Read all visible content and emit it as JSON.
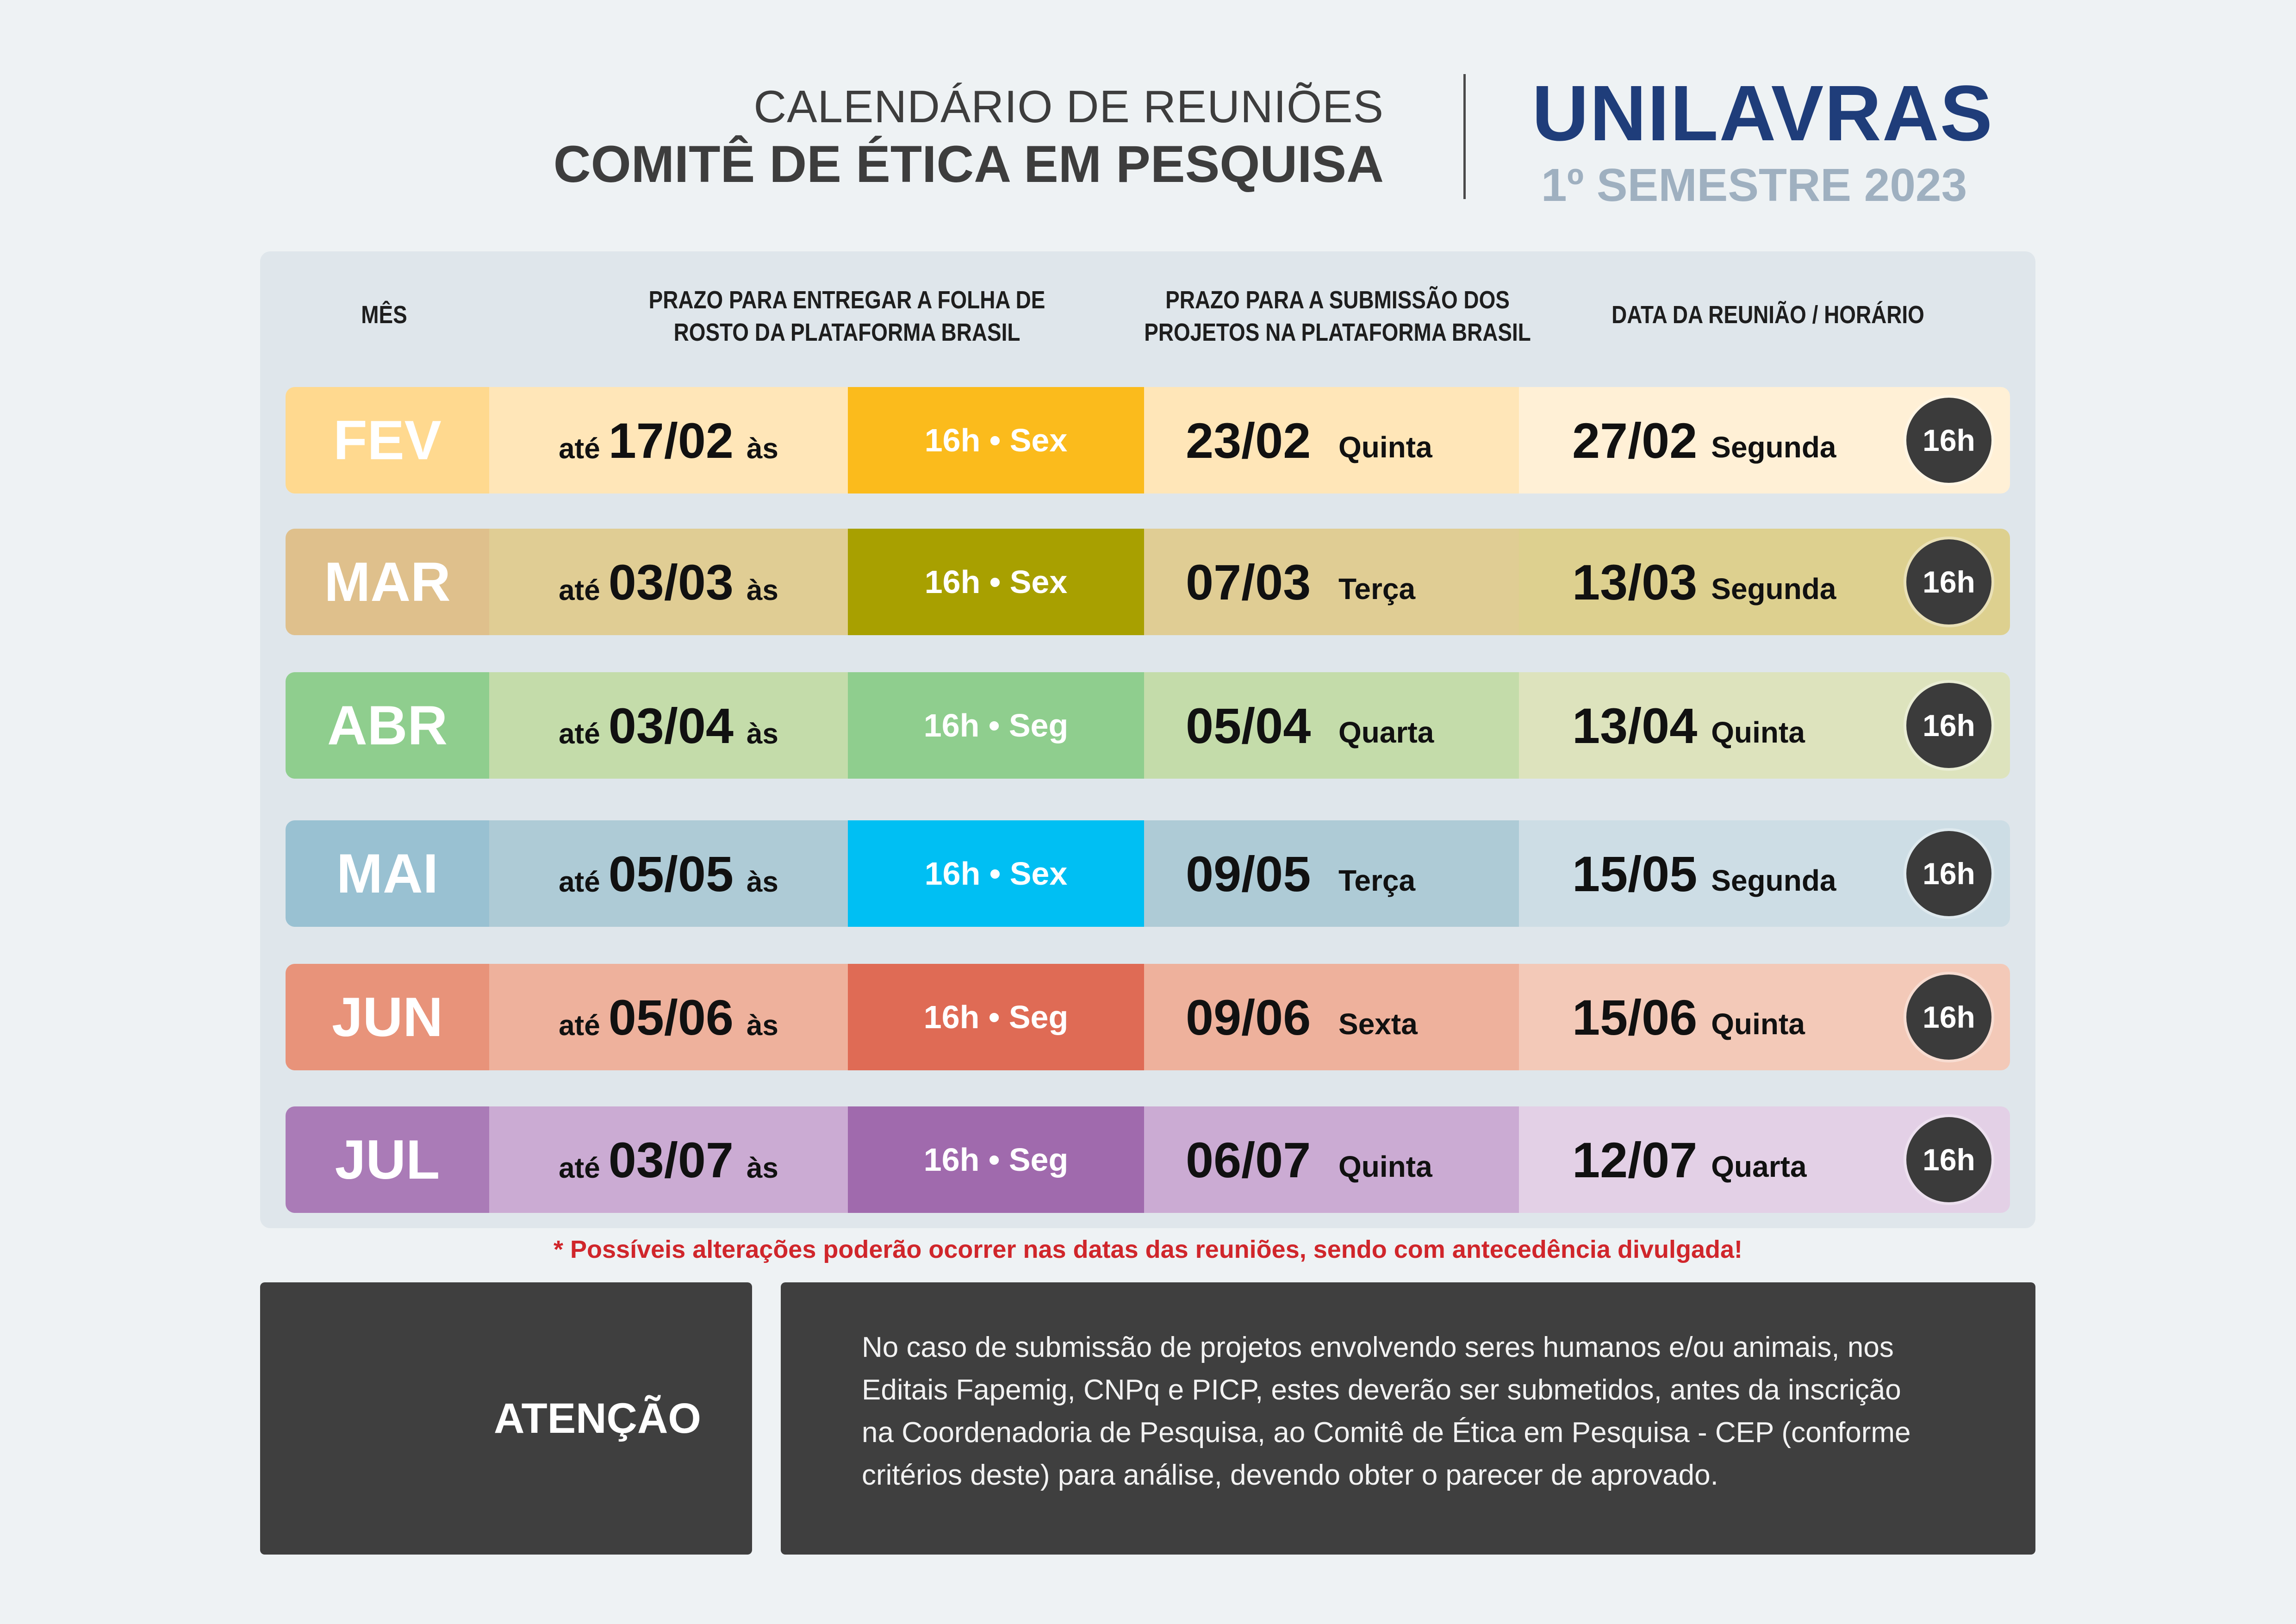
{
  "header": {
    "title_line1": "CALENDÁRIO DE REUNIÕES",
    "title_line2": "COMITÊ DE ÉTICA EM PESQUISA",
    "brand": "UNILAVRAS",
    "semester": "1º SEMESTRE 2023"
  },
  "columns": {
    "month": "MÊS",
    "delivery_line1": "PRAZO PARA ENTREGAR A FOLHA DE",
    "delivery_line2": "ROSTO DA PLATAFORMA BRASIL",
    "submission_line1": "PRAZO PARA A SUBMISSÃO DOS",
    "submission_line2": "PROJETOS NA PLATAFORMA BRASIL",
    "meeting": "DATA DA REUNIÃO / HORÁRIO"
  },
  "labels": {
    "ate": "até",
    "as": "às"
  },
  "rows": [
    {
      "month": "FEV",
      "delivery_date": "17/02",
      "delivery_time": "16h • Sex",
      "submission_date": "23/02",
      "submission_day": "Quinta",
      "meeting_date": "27/02",
      "meeting_day": "Segunda",
      "meeting_time": "16h",
      "colors": {
        "month": "#ffd98f",
        "light": "#ffe6b8",
        "time": "#fbbb1c",
        "meet": "#fff0d6"
      }
    },
    {
      "month": "MAR",
      "delivery_date": "03/03",
      "delivery_time": "16h • Sex",
      "submission_date": "07/03",
      "submission_day": "Terça",
      "meeting_date": "13/03",
      "meeting_day": "Segunda",
      "meeting_time": "16h",
      "colors": {
        "month": "#dfc08c",
        "light": "#e0cd94",
        "time": "#a8a000",
        "meet": "#ddd08f"
      }
    },
    {
      "month": "ABR",
      "delivery_date": "03/04",
      "delivery_time": "16h • Seg",
      "submission_date": "05/04",
      "submission_day": "Quarta",
      "meeting_date": "13/04",
      "meeting_day": "Quinta",
      "meeting_time": "16h",
      "colors": {
        "month": "#8fce8e",
        "light": "#c4dcaa",
        "time": "#8fce8e",
        "meet": "#dde3bd"
      }
    },
    {
      "month": "MAI",
      "delivery_date": "05/05",
      "delivery_time": "16h • Sex",
      "submission_date": "09/05",
      "submission_day": "Terça",
      "meeting_date": "15/05",
      "meeting_day": "Segunda",
      "meeting_time": "16h",
      "colors": {
        "month": "#99c1d2",
        "light": "#aecbd6",
        "time": "#00bff3",
        "meet": "#cddde5"
      }
    },
    {
      "month": "JUN",
      "delivery_date": "05/06",
      "delivery_time": "16h • Seg",
      "submission_date": "09/06",
      "submission_day": "Sexta",
      "meeting_date": "15/06",
      "meeting_day": "Quinta",
      "meeting_time": "16h",
      "colors": {
        "month": "#e8937a",
        "light": "#eeb19c",
        "time": "#df6b55",
        "meet": "#f3c9b8"
      }
    },
    {
      "month": "JUL",
      "delivery_date": "03/07",
      "delivery_time": "16h • Seg",
      "submission_date": "06/07",
      "submission_day": "Quinta",
      "meeting_date": "12/07",
      "meeting_day": "Quarta",
      "meeting_time": "16h",
      "colors": {
        "month": "#aa7bb7",
        "light": "#cbabd3",
        "time": "#a06aad",
        "meet": "#e3d0e6"
      }
    }
  ],
  "note": "* Possíveis alterações poderão ocorrer nas  datas das reuniões, sendo com antecedência divulgada!",
  "attention": {
    "title": "ATENÇÃO",
    "lines": [
      "No caso de submissão de projetos envolvendo seres humanos e/ou animais, nos",
      "Editais Fapemig, CNPq e PICP, estes deverão ser submetidos, antes da inscrição",
      "na Coordenadoria de Pesquisa, ao Comitê de Ética em Pesquisa - CEP (conforme",
      "critérios deste) para análise, devendo obter o parecer de aprovado."
    ]
  }
}
